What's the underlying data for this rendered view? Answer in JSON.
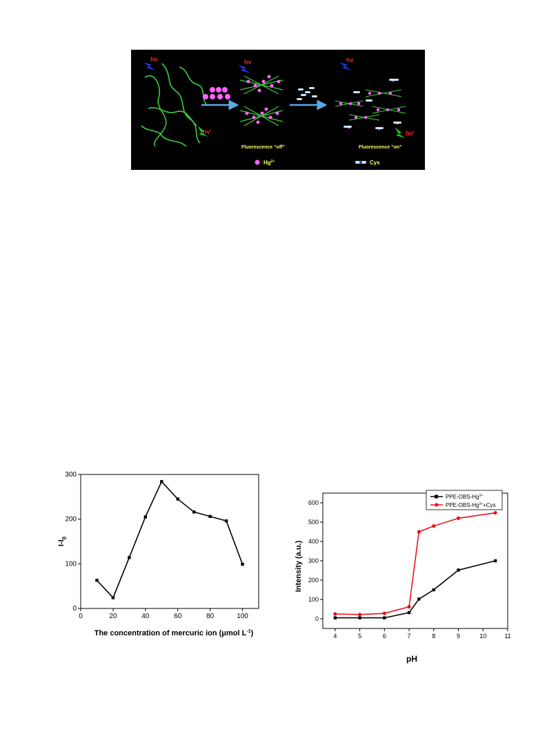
{
  "scheme": {
    "hv_left": "hv",
    "hv_left_emit": "hv'",
    "hv_mid": "hv",
    "hv_right": "hv",
    "hv_right_emit": "hv'",
    "label_off": "Fluorescence “off”",
    "label_on": "Fluorescence “on”",
    "legend_hg": "Hg",
    "legend_hg_sup": "2+",
    "legend_cys": "Cys",
    "colors": {
      "polymer": "#3ecf3e",
      "hg": "#ff66ff",
      "cys": "#cfe3ff",
      "arrow": "#5aa9e6",
      "text_label": "#ffff66",
      "hv": "#ff2020"
    }
  },
  "chart_data": [
    {
      "type": "line",
      "xlabel": "The concentration of mercuric ion (μmol L",
      "xlabel_sup": "-1",
      "xlabel_end": ")",
      "ylabel": "I-I",
      "ylabel_sub": "0",
      "xlim": [
        0,
        110
      ],
      "ylim": [
        0,
        300
      ],
      "xticks": [
        0,
        20,
        40,
        60,
        80,
        100
      ],
      "yticks": [
        0,
        100,
        200,
        300
      ],
      "series": [
        {
          "x": [
            10,
            20,
            30,
            40,
            50,
            60,
            70,
            80,
            90,
            100
          ],
          "values": [
            63,
            24,
            114,
            205,
            284,
            245,
            216,
            206,
            196,
            99
          ],
          "color": "#000000",
          "marker": "square"
        }
      ]
    },
    {
      "type": "line",
      "xlabel": "pH",
      "ylabel": "Intensity (a.u.)",
      "xlim": [
        3.5,
        11
      ],
      "ylim": [
        -50,
        650
      ],
      "xticks": [
        4,
        5,
        6,
        7,
        8,
        9,
        10,
        11
      ],
      "yticks": [
        0,
        100,
        200,
        300,
        400,
        500,
        600
      ],
      "legend_position": "top-right",
      "series": [
        {
          "name": "PPE-OBS-Hg",
          "name_sup": "2+",
          "x": [
            4,
            5,
            6,
            7,
            7.4,
            8,
            9,
            10.5
          ],
          "values": [
            5,
            5,
            5,
            32,
            102,
            150,
            252,
            300
          ],
          "color": "#000000",
          "marker": "square"
        },
        {
          "name": "PPE-OBS-Hg",
          "name_sup": "2+",
          "name_end": "+Cys",
          "x": [
            4,
            5,
            6,
            7,
            7.4,
            8,
            9,
            10.5
          ],
          "values": [
            25,
            22,
            28,
            62,
            450,
            480,
            520,
            548
          ],
          "color": "#e8141c",
          "marker": "circle"
        }
      ]
    }
  ]
}
